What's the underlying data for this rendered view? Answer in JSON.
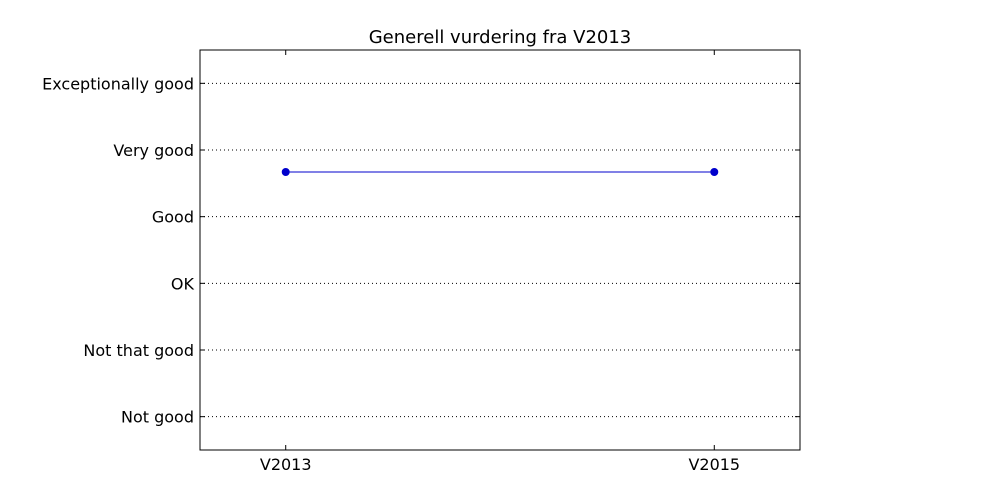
{
  "chart_data": {
    "type": "line",
    "title": "Generell vurdering fra V2013",
    "xlabel": "",
    "ylabel": "",
    "categories": [
      "V2013",
      "V2015"
    ],
    "y_tick_labels": [
      "Not good",
      "Not that good",
      "OK",
      "Good",
      "Very good",
      "Exceptionally good"
    ],
    "y_tick_values": [
      1,
      2,
      3,
      4,
      5,
      6
    ],
    "ylim": [
      0.5,
      6.5
    ],
    "xlim": [
      -0.2,
      1.2
    ],
    "grid": "horizontal-dotted",
    "series": [
      {
        "values": [
          4.67,
          4.67
        ],
        "color": "#0000cc"
      }
    ]
  }
}
